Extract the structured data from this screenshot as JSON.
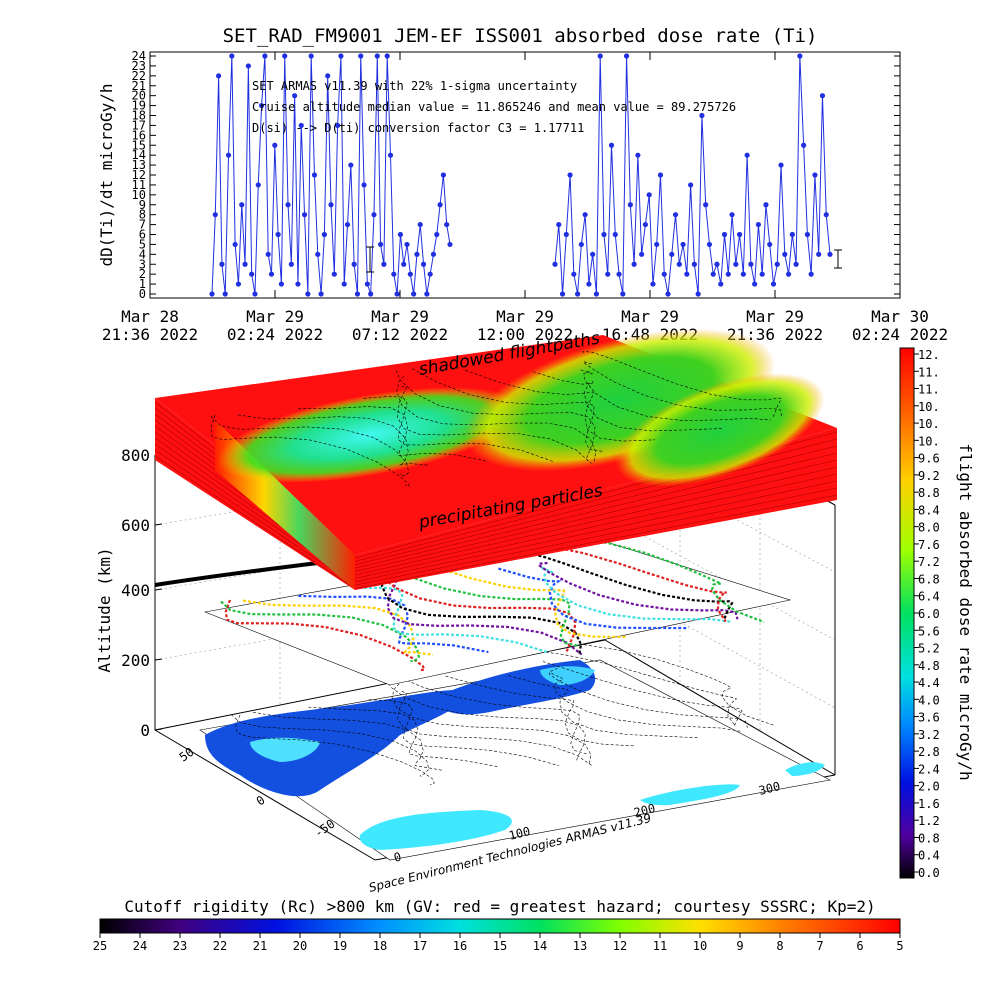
{
  "chart_data": [
    {
      "type": "line",
      "title": "SET_RAD_FM9001  JEM-EF ISS001 absorbed dose rate (Ti)",
      "ylabel": "dD(Ti)/dt microGy/h",
      "ylim": [
        0,
        24
      ],
      "y_ticks": [
        "0",
        "1",
        "2",
        "3",
        "4",
        "5",
        "6",
        "7",
        "8",
        "9",
        "10",
        "11",
        "12",
        "13",
        "14",
        "15",
        "16",
        "17",
        "18",
        "19",
        "20",
        "21",
        "22",
        "23",
        "24"
      ],
      "x_ticks": [
        {
          "date": "Mar 28",
          "time": "21:36 2022"
        },
        {
          "date": "Mar 29",
          "time": "02:24 2022"
        },
        {
          "date": "Mar 29",
          "time": "07:12 2022"
        },
        {
          "date": "Mar 29",
          "time": "12:00 2022"
        },
        {
          "date": "Mar 29",
          "time": "16:48 2022"
        },
        {
          "date": "Mar 29",
          "time": "21:36 2022"
        },
        {
          "date": "Mar 30",
          "time": "02:24 2022"
        }
      ],
      "annotations": [
        "SET ARMAS v11.39 with 22% 1-sigma uncertainty",
        "Cruise altitude median value = 11.865246 and mean value = 89.275726",
        "D(si) --> D(ti) conversion factor C3 = 1.17711"
      ],
      "series": [
        {
          "values": [
            0,
            8,
            22,
            3,
            0,
            14,
            24,
            5,
            1,
            9,
            3,
            23,
            2,
            0,
            11,
            19,
            24,
            4,
            2,
            15,
            6,
            1,
            24,
            9,
            3,
            20,
            1,
            17,
            8,
            0,
            24,
            12,
            4,
            0,
            6,
            22,
            9,
            2,
            17,
            24,
            1,
            7,
            13,
            3,
            0,
            24,
            11,
            1,
            0,
            8,
            24,
            5,
            3,
            24,
            14,
            2,
            0,
            6,
            3,
            5,
            2,
            0,
            4,
            7,
            3,
            0,
            2,
            4,
            6,
            9,
            12,
            7,
            5
          ]
        },
        {
          "values": [
            3,
            7,
            0,
            6,
            12,
            2,
            0,
            5,
            8,
            1,
            4,
            0,
            24,
            6,
            2,
            15,
            6,
            2,
            0,
            24,
            9,
            3,
            14,
            4,
            7,
            10,
            1,
            5,
            12,
            2,
            0,
            4,
            8,
            3,
            5,
            2,
            11,
            3,
            0,
            18,
            9,
            5,
            2,
            3,
            1,
            6,
            2,
            8,
            3,
            6,
            2,
            14,
            3,
            1,
            7,
            2,
            9,
            5,
            1,
            3,
            13,
            4,
            2,
            6,
            3,
            24,
            15,
            6,
            2,
            12,
            4,
            20,
            8,
            4
          ]
        }
      ],
      "error_bars": [
        {
          "x_label": "start",
          "value": 4.5
        },
        {
          "x_label": "end",
          "value": 4
        }
      ]
    },
    {
      "type": "surface-3d",
      "zlabel": "Altitude (km)",
      "z_ticks": [
        "0",
        "200",
        "400",
        "600",
        "800"
      ],
      "lat_ticks": [
        "50",
        "0",
        "-50"
      ],
      "lon_ticks": [
        "0",
        "100",
        "200",
        "300"
      ],
      "layer_labels": [
        "shadowed flightpaths",
        "precipitating particles"
      ],
      "credit": "Space Environment Technologies ARMAS v11.39"
    },
    {
      "type": "colorbar",
      "label": "flight absorbed dose rate microGy/h",
      "ticks": [
        "12.",
        "11.",
        "11.",
        "10.",
        "10.",
        "10.",
        "9.6",
        "9.2",
        "8.8",
        "8.4",
        "8.0",
        "7.6",
        "7.2",
        "6.8",
        "6.4",
        "6.0",
        "5.6",
        "5.2",
        "4.8",
        "4.4",
        "4.0",
        "3.6",
        "3.2",
        "2.8",
        "2.4",
        "2.0",
        "1.6",
        "1.2",
        "0.8",
        "0.4",
        "0.0"
      ]
    },
    {
      "type": "colorbar",
      "label": "Cutoff rigidity (Rc) >800 km (GV: red = greatest hazard; courtesy SSSRC; Kp=2)",
      "ticks": [
        "25",
        "24",
        "23",
        "22",
        "21",
        "20",
        "19",
        "18",
        "17",
        "16",
        "15",
        "14",
        "13",
        "12",
        "11",
        "10",
        "9",
        "8",
        "7",
        "6",
        "5"
      ]
    }
  ],
  "colors": {
    "series": "#2030e0",
    "red": "#ff1010",
    "green": "#10d040",
    "cyan": "#40f0f0"
  }
}
